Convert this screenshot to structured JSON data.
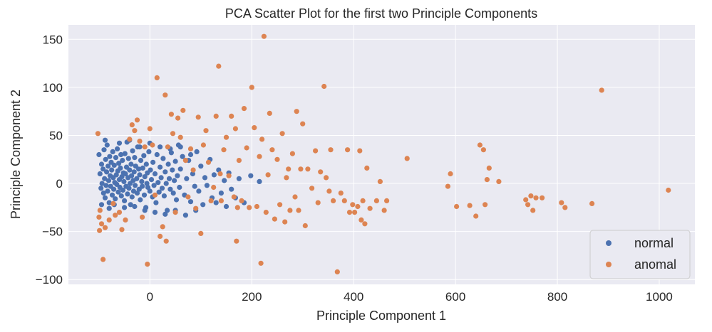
{
  "chart_data": {
    "type": "scatter",
    "title": "PCA Scatter Plot for the first two Principle Components",
    "xlabel": "Principle Component 1",
    "ylabel": "Principle Component 2",
    "xlim": [
      -160,
      1070
    ],
    "ylim": [
      -105,
      165
    ],
    "xticks": [
      0,
      200,
      400,
      600,
      800,
      1000
    ],
    "yticks": [
      -100,
      -50,
      0,
      50,
      100,
      150
    ],
    "grid": true,
    "background": "#eaeaf2",
    "legend_position": "lower-right",
    "series": [
      {
        "name": "normal",
        "color": "#4c72b0",
        "points": [
          [
            -100,
            30
          ],
          [
            -98,
            10
          ],
          [
            -96,
            -5
          ],
          [
            -95,
            20
          ],
          [
            -94,
            0
          ],
          [
            -92,
            15
          ],
          [
            -91,
            -10
          ],
          [
            -90,
            35
          ],
          [
            -89,
            5
          ],
          [
            -88,
            -15
          ],
          [
            -87,
            25
          ],
          [
            -86,
            -2
          ],
          [
            -85,
            12
          ],
          [
            -84,
            40
          ],
          [
            -83,
            -8
          ],
          [
            -82,
            18
          ],
          [
            -81,
            3
          ],
          [
            -80,
            -20
          ],
          [
            -79,
            28
          ],
          [
            -78,
            8
          ],
          [
            -77,
            -3
          ],
          [
            -76,
            22
          ],
          [
            -75,
            14
          ],
          [
            -74,
            -12
          ],
          [
            -73,
            33
          ],
          [
            -72,
            6
          ],
          [
            -71,
            -6
          ],
          [
            -70,
            19
          ],
          [
            -69,
            1
          ],
          [
            -68,
            -16
          ],
          [
            -67,
            27
          ],
          [
            -66,
            9
          ],
          [
            -65,
            -1
          ],
          [
            -64,
            36
          ],
          [
            -63,
            13
          ],
          [
            -62,
            -9
          ],
          [
            -61,
            21
          ],
          [
            -60,
            4
          ],
          [
            -59,
            -4
          ],
          [
            -58,
            16
          ],
          [
            -57,
            30
          ],
          [
            -56,
            -13
          ],
          [
            -55,
            7
          ],
          [
            -54,
            24
          ],
          [
            -53,
            -7
          ],
          [
            -52,
            11
          ],
          [
            -51,
            2
          ],
          [
            -50,
            -18
          ],
          [
            -49,
            31
          ],
          [
            -48,
            10
          ],
          [
            -47,
            -3
          ],
          [
            -46,
            17
          ],
          [
            -45,
            43
          ],
          [
            -44,
            -11
          ],
          [
            -43,
            6
          ],
          [
            -42,
            26
          ],
          [
            -41,
            -5
          ],
          [
            -40,
            14
          ],
          [
            -39,
            0
          ],
          [
            -38,
            -22
          ],
          [
            -37,
            20
          ],
          [
            -36,
            8
          ],
          [
            -35,
            -14
          ],
          [
            -34,
            34
          ],
          [
            -33,
            3
          ],
          [
            -32,
            -8
          ],
          [
            -31,
            12
          ],
          [
            -30,
            27
          ],
          [
            -29,
            -2
          ],
          [
            -28,
            18
          ],
          [
            -26,
            5
          ],
          [
            -25,
            -10
          ],
          [
            -24,
            38
          ],
          [
            -22,
            15
          ],
          [
            -21,
            -6
          ],
          [
            -20,
            9
          ],
          [
            -19,
            -17
          ],
          [
            -18,
            24
          ],
          [
            -16,
            2
          ],
          [
            -15,
            -3
          ],
          [
            -14,
            16
          ],
          [
            -12,
            29
          ],
          [
            -11,
            -12
          ],
          [
            -10,
            7
          ],
          [
            -8,
            -25
          ],
          [
            -7,
            20
          ],
          [
            -6,
            0
          ],
          [
            -5,
            11
          ],
          [
            -4,
            -4
          ],
          [
            -2,
            33
          ],
          [
            0,
            -8
          ],
          [
            1,
            14
          ],
          [
            3,
            4
          ],
          [
            5,
            -14
          ],
          [
            6,
            22
          ],
          [
            8,
            -2
          ],
          [
            10,
            10
          ],
          [
            12,
            -20
          ],
          [
            14,
            30
          ],
          [
            16,
            1
          ],
          [
            18,
            -9
          ],
          [
            20,
            17
          ],
          [
            22,
            6
          ],
          [
            24,
            -5
          ],
          [
            26,
            26
          ],
          [
            28,
            -13
          ],
          [
            30,
            12
          ],
          [
            32,
            0
          ],
          [
            34,
            -28
          ],
          [
            36,
            20
          ],
          [
            38,
            5
          ],
          [
            40,
            -6
          ],
          [
            42,
            32
          ],
          [
            44,
            14
          ],
          [
            46,
            -10
          ],
          [
            48,
            3
          ],
          [
            50,
            23
          ],
          [
            52,
            -17
          ],
          [
            54,
            8
          ],
          [
            56,
            40
          ],
          [
            58,
            -4
          ],
          [
            60,
            15
          ],
          [
            64,
            28
          ],
          [
            68,
            -12
          ],
          [
            72,
            5
          ],
          [
            76,
            24
          ],
          [
            80,
            -19
          ],
          [
            84,
            10
          ],
          [
            88,
            -3
          ],
          [
            92,
            33
          ],
          [
            96,
            -8
          ],
          [
            100,
            18
          ],
          [
            104,
            -22
          ],
          [
            108,
            6
          ],
          [
            112,
            -2
          ],
          [
            118,
            25
          ],
          [
            122,
            -15
          ],
          [
            126,
            9
          ],
          [
            130,
            -20
          ],
          [
            135,
            14
          ],
          [
            140,
            -10
          ],
          [
            146,
            3
          ],
          [
            150,
            -24
          ],
          [
            155,
            11
          ],
          [
            160,
            -6
          ],
          [
            168,
            -15
          ],
          [
            175,
            5
          ],
          [
            185,
            -20
          ],
          [
            198,
            8
          ],
          [
            215,
            2
          ],
          [
            -95,
            -22
          ],
          [
            -88,
            45
          ],
          [
            -80,
            -26
          ],
          [
            -70,
            -22
          ],
          [
            -60,
            42
          ],
          [
            -50,
            -25
          ],
          [
            -40,
            45
          ],
          [
            -30,
            -24
          ],
          [
            -20,
            38
          ],
          [
            -10,
            -28
          ],
          [
            0,
            42
          ],
          [
            10,
            -30
          ],
          [
            20,
            38
          ],
          [
            30,
            -32
          ],
          [
            40,
            36
          ],
          [
            50,
            -28
          ],
          [
            60,
            38
          ],
          [
            70,
            -33
          ],
          [
            80,
            30
          ],
          [
            90,
            -28
          ]
        ]
      },
      {
        "name": "anomal",
        "color": "#dd8452",
        "points": [
          [
            -102,
            52
          ],
          [
            -100,
            -35
          ],
          [
            -99,
            -49
          ],
          [
            -98,
            -28
          ],
          [
            -95,
            -42
          ],
          [
            -92,
            -79
          ],
          [
            -88,
            -46
          ],
          [
            -80,
            -38
          ],
          [
            -72,
            -21
          ],
          [
            -68,
            -33
          ],
          [
            -60,
            -30
          ],
          [
            -55,
            -48
          ],
          [
            -48,
            -38
          ],
          [
            -40,
            46
          ],
          [
            -35,
            61
          ],
          [
            -30,
            55
          ],
          [
            -25,
            66
          ],
          [
            -20,
            44
          ],
          [
            -15,
            -35
          ],
          [
            -10,
            38
          ],
          [
            -5,
            -84
          ],
          [
            0,
            57
          ],
          [
            5,
            40
          ],
          [
            10,
            -12
          ],
          [
            14,
            110
          ],
          [
            20,
            -55
          ],
          [
            25,
            -45
          ],
          [
            30,
            92
          ],
          [
            32,
            -60
          ],
          [
            35,
            38
          ],
          [
            42,
            72
          ],
          [
            45,
            52
          ],
          [
            50,
            -30
          ],
          [
            55,
            68
          ],
          [
            60,
            48
          ],
          [
            65,
            76
          ],
          [
            70,
            24
          ],
          [
            75,
            -14
          ],
          [
            80,
            36
          ],
          [
            85,
            14
          ],
          [
            90,
            -26
          ],
          [
            95,
            69
          ],
          [
            100,
            -52
          ],
          [
            105,
            40
          ],
          [
            110,
            55
          ],
          [
            115,
            22
          ],
          [
            120,
            -18
          ],
          [
            125,
            -4
          ],
          [
            130,
            70
          ],
          [
            135,
            122
          ],
          [
            138,
            10
          ],
          [
            140,
            -18
          ],
          [
            145,
            35
          ],
          [
            150,
            48
          ],
          [
            155,
            8
          ],
          [
            160,
            70
          ],
          [
            165,
            -14
          ],
          [
            168,
            57
          ],
          [
            170,
            -60
          ],
          [
            172,
            -25
          ],
          [
            175,
            24
          ],
          [
            180,
            -18
          ],
          [
            185,
            78
          ],
          [
            190,
            37
          ],
          [
            195,
            -25
          ],
          [
            200,
            100
          ],
          [
            205,
            58
          ],
          [
            210,
            -24
          ],
          [
            215,
            28
          ],
          [
            218,
            -83
          ],
          [
            220,
            46
          ],
          [
            224,
            153
          ],
          [
            228,
            -30
          ],
          [
            232,
            9
          ],
          [
            235,
            73
          ],
          [
            240,
            35
          ],
          [
            245,
            -37
          ],
          [
            250,
            25
          ],
          [
            255,
            -22
          ],
          [
            260,
            52
          ],
          [
            265,
            -40
          ],
          [
            268,
            6
          ],
          [
            272,
            15
          ],
          [
            275,
            -28
          ],
          [
            280,
            31
          ],
          [
            285,
            -14
          ],
          [
            288,
            75
          ],
          [
            292,
            -28
          ],
          [
            296,
            15
          ],
          [
            300,
            62
          ],
          [
            305,
            -44
          ],
          [
            310,
            15
          ],
          [
            318,
            -5
          ],
          [
            325,
            34
          ],
          [
            330,
            -20
          ],
          [
            335,
            12
          ],
          [
            342,
            101
          ],
          [
            346,
            6
          ],
          [
            352,
            -8
          ],
          [
            355,
            35
          ],
          [
            360,
            -18
          ],
          [
            368,
            -92
          ],
          [
            375,
            -10
          ],
          [
            382,
            -18
          ],
          [
            388,
            35
          ],
          [
            392,
            -30
          ],
          [
            398,
            -22
          ],
          [
            402,
            -30
          ],
          [
            408,
            -24
          ],
          [
            412,
            34
          ],
          [
            415,
            -38
          ],
          [
            418,
            -18
          ],
          [
            422,
            -42
          ],
          [
            426,
            16
          ],
          [
            432,
            -26
          ],
          [
            445,
            -18
          ],
          [
            452,
            2
          ],
          [
            460,
            -28
          ],
          [
            465,
            -18
          ],
          [
            505,
            26
          ],
          [
            585,
            -3
          ],
          [
            590,
            10
          ],
          [
            602,
            -24
          ],
          [
            628,
            -23
          ],
          [
            640,
            -34
          ],
          [
            648,
            40
          ],
          [
            655,
            35
          ],
          [
            658,
            -22
          ],
          [
            662,
            4
          ],
          [
            666,
            16
          ],
          [
            685,
            2
          ],
          [
            738,
            -17
          ],
          [
            742,
            -22
          ],
          [
            748,
            -13
          ],
          [
            752,
            -28
          ],
          [
            758,
            -15
          ],
          [
            770,
            -15
          ],
          [
            808,
            -20
          ],
          [
            815,
            -25
          ],
          [
            868,
            -21
          ],
          [
            887,
            97
          ],
          [
            1018,
            -7
          ]
        ]
      }
    ]
  }
}
